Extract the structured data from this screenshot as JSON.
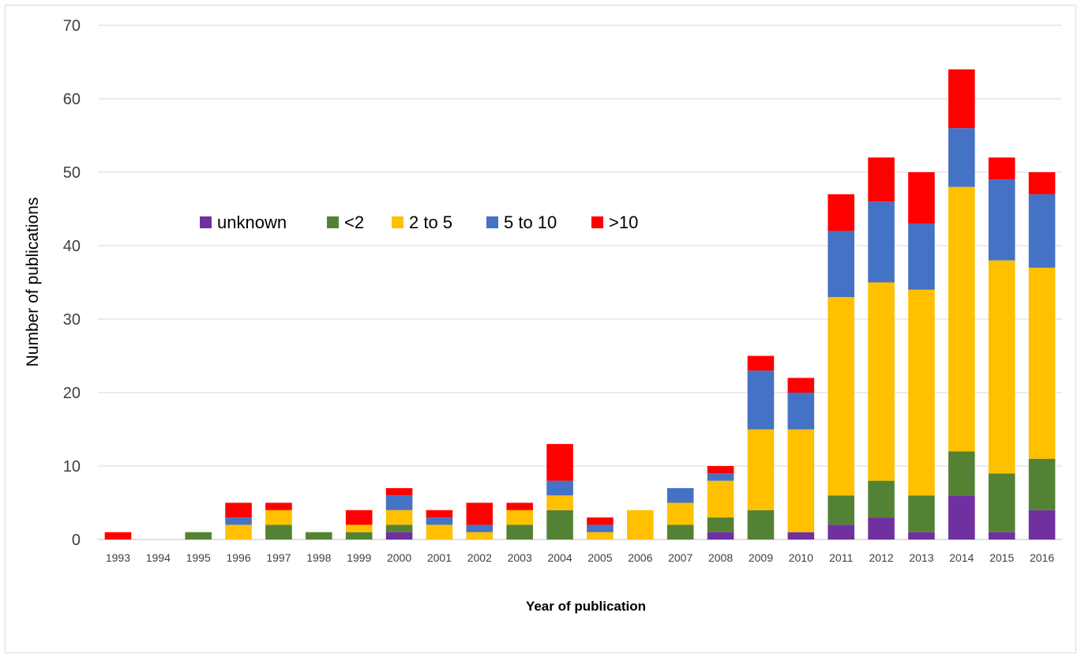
{
  "chart_data": {
    "type": "bar",
    "stacked": true,
    "xlabel": "Year of publication",
    "ylabel": "Number of publications",
    "ylim": [
      0,
      70
    ],
    "yticks": [
      "0",
      "10",
      "20",
      "30",
      "40",
      "50",
      "60",
      "70"
    ],
    "grid": true,
    "legend_position": "upper-left",
    "categories": [
      "1993",
      "1994",
      "1995",
      "1996",
      "1997",
      "1998",
      "1999",
      "2000",
      "2001",
      "2002",
      "2003",
      "2004",
      "2005",
      "2006",
      "2007",
      "2008",
      "2009",
      "2010",
      "2011",
      "2012",
      "2013",
      "2014",
      "2015",
      "2016"
    ],
    "series": [
      {
        "name": "unknown",
        "color": "#7030a0",
        "values": [
          0,
          0,
          0,
          0,
          0,
          0,
          0,
          1,
          0,
          0,
          0,
          0,
          0,
          0,
          0,
          1,
          0,
          1,
          2,
          3,
          1,
          6,
          1,
          4
        ]
      },
      {
        "name": "<2",
        "color": "#548235",
        "values": [
          0,
          0,
          1,
          0,
          2,
          1,
          1,
          1,
          0,
          0,
          2,
          4,
          0,
          0,
          2,
          2,
          4,
          0,
          4,
          5,
          5,
          6,
          8,
          7
        ]
      },
      {
        "name": "2 to 5",
        "color": "#ffc000",
        "values": [
          0,
          0,
          0,
          2,
          2,
          0,
          1,
          2,
          2,
          1,
          2,
          2,
          1,
          4,
          3,
          5,
          11,
          14,
          27,
          27,
          28,
          36,
          29,
          26
        ]
      },
      {
        "name": "5 to 10",
        "color": "#4472c4",
        "values": [
          0,
          0,
          0,
          1,
          0,
          0,
          0,
          2,
          1,
          1,
          0,
          2,
          1,
          0,
          2,
          1,
          8,
          5,
          9,
          11,
          9,
          8,
          11,
          10
        ]
      },
      {
        "name": ">10",
        "color": "#ff0000",
        "values": [
          1,
          0,
          0,
          2,
          1,
          0,
          2,
          1,
          1,
          3,
          1,
          5,
          1,
          0,
          0,
          1,
          2,
          2,
          5,
          6,
          7,
          8,
          3,
          3
        ]
      }
    ]
  }
}
